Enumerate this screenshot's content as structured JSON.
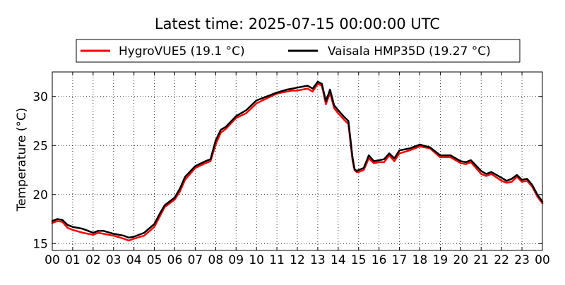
{
  "chart_data": {
    "type": "line",
    "title": "Latest time: 2025-07-15 00:00:00 UTC",
    "xlabel": "",
    "ylabel": "Temperature (°C)",
    "x_tick_labels": [
      "00",
      "01",
      "02",
      "03",
      "04",
      "05",
      "06",
      "07",
      "08",
      "09",
      "10",
      "11",
      "12",
      "13",
      "14",
      "15",
      "16",
      "17",
      "18",
      "19",
      "20",
      "21",
      "22",
      "23",
      "00"
    ],
    "y_ticks": [
      15,
      20,
      25,
      30
    ],
    "xlim": [
      0,
      24
    ],
    "ylim": [
      14.3,
      32.5
    ],
    "grid": true,
    "legend_placement": "top-center",
    "x": [
      0,
      0.25,
      0.5,
      0.75,
      1,
      1.5,
      2,
      2.25,
      2.5,
      3,
      3.5,
      3.75,
      4,
      4.5,
      5,
      5.25,
      5.5,
      6,
      6.25,
      6.5,
      7,
      7.5,
      7.75,
      8,
      8.25,
      8.5,
      9,
      9.5,
      10,
      10.5,
      11,
      11.5,
      11.75,
      12,
      12.5,
      12.75,
      13,
      13.2,
      13.4,
      13.6,
      13.8,
      14,
      14.3,
      14.5,
      14.7,
      14.8,
      14.9,
      15,
      15.25,
      15.5,
      15.75,
      16,
      16.25,
      16.5,
      16.75,
      17,
      17.5,
      18,
      18.5,
      19,
      19.5,
      20,
      20.25,
      20.5,
      21,
      21.25,
      21.5,
      22,
      22.25,
      22.5,
      22.75,
      23,
      23.25,
      23.5,
      23.75,
      24
    ],
    "series": [
      {
        "name": "HygroVUE5 (19.1 °C)",
        "color": "#ff0000",
        "values": [
          17.1,
          17.3,
          17.2,
          16.6,
          16.4,
          16.1,
          15.9,
          16.1,
          16.0,
          15.8,
          15.5,
          15.3,
          15.5,
          15.8,
          16.7,
          17.7,
          18.7,
          19.5,
          20.3,
          21.5,
          22.7,
          23.2,
          23.4,
          25.1,
          26.3,
          26.7,
          27.8,
          28.3,
          29.3,
          29.8,
          30.3,
          30.5,
          30.6,
          30.6,
          30.8,
          30.5,
          31.3,
          31.1,
          29.2,
          30.4,
          28.8,
          28.3,
          27.6,
          27.2,
          23.5,
          22.5,
          22.3,
          22.3,
          22.5,
          23.7,
          23.2,
          23.3,
          23.3,
          24.0,
          23.4,
          24.2,
          24.5,
          24.9,
          24.7,
          23.8,
          23.8,
          23.2,
          23.1,
          23.3,
          22.1,
          21.9,
          22.1,
          21.4,
          21.2,
          21.3,
          21.8,
          21.3,
          21.4,
          20.8,
          19.8,
          19.1
        ]
      },
      {
        "name": "Vaisala HMP35D (19.27 °C)",
        "color": "#000000",
        "values": [
          17.3,
          17.5,
          17.4,
          16.9,
          16.7,
          16.5,
          16.1,
          16.3,
          16.3,
          16.0,
          15.8,
          15.6,
          15.7,
          16.1,
          17.0,
          18.0,
          18.9,
          19.7,
          20.6,
          21.8,
          22.9,
          23.4,
          23.6,
          25.5,
          26.6,
          26.9,
          28.0,
          28.6,
          29.6,
          30.0,
          30.4,
          30.7,
          30.8,
          30.9,
          31.1,
          30.8,
          31.5,
          31.3,
          29.5,
          30.7,
          29.1,
          28.6,
          27.9,
          27.5,
          23.8,
          22.6,
          22.4,
          22.5,
          22.7,
          24.0,
          23.4,
          23.5,
          23.6,
          24.2,
          23.7,
          24.5,
          24.7,
          25.1,
          24.8,
          24.0,
          24.0,
          23.4,
          23.3,
          23.5,
          22.4,
          22.1,
          22.3,
          21.7,
          21.4,
          21.6,
          22.0,
          21.5,
          21.6,
          21.0,
          20.0,
          19.27
        ]
      }
    ]
  }
}
